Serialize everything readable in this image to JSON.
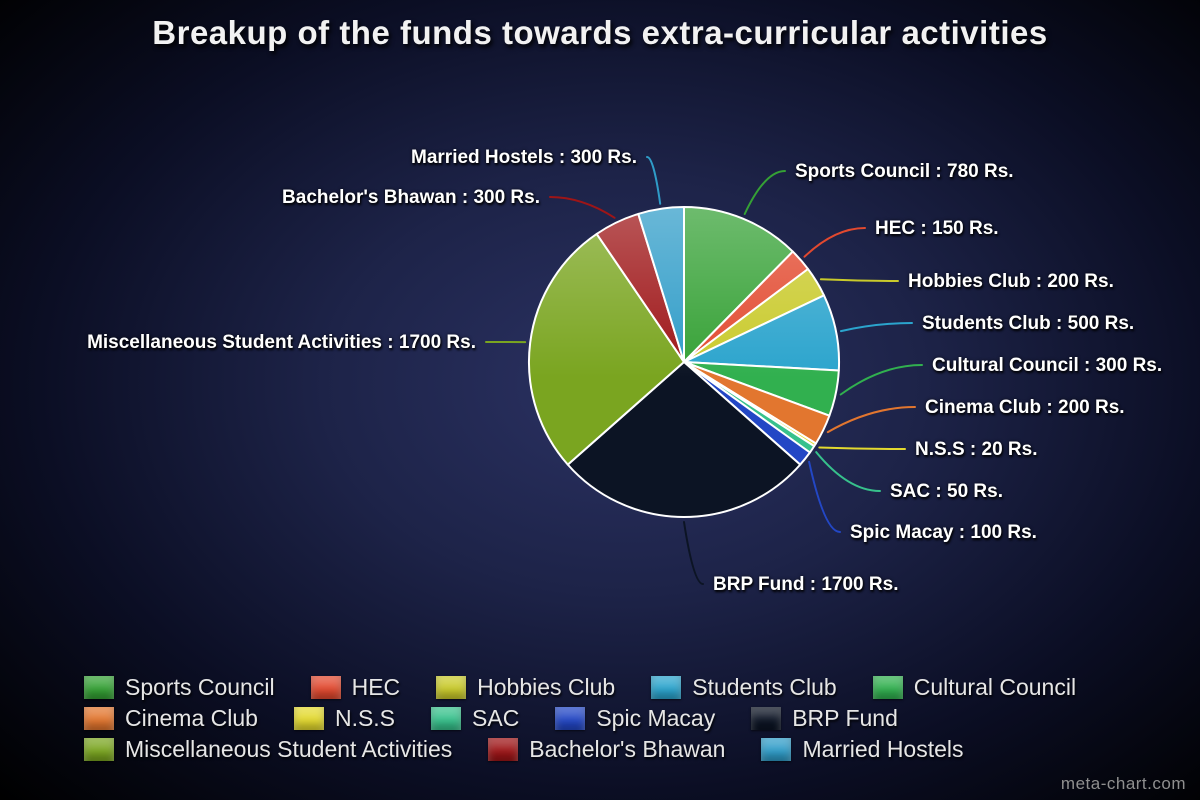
{
  "title": "Breakup of the funds towards extra-curricular activities",
  "watermark": "meta-chart.com",
  "chart_data": {
    "type": "pie",
    "title": "Breakup of the funds towards extra-curricular activities",
    "unit": "Rs.",
    "total": 6300,
    "start_angle_deg": 0,
    "direction": "clockwise",
    "legend_position": "bottom",
    "slices": [
      {
        "label": "Sports Council",
        "value": 780,
        "color": "#35a135",
        "annotation": "Sports Council : 780 Rs."
      },
      {
        "label": "HEC",
        "value": 150,
        "color": "#e2492f",
        "annotation": "HEC : 150 Rs."
      },
      {
        "label": "Hobbies Club",
        "value": 200,
        "color": "#c9ca2b",
        "annotation": "Hobbies Club : 200 Rs."
      },
      {
        "label": "Students Club",
        "value": 500,
        "color": "#2ba4cd",
        "annotation": "Students Club : 500 Rs."
      },
      {
        "label": "Cultural Council",
        "value": 300,
        "color": "#31b04f",
        "annotation": "Cultural Council : 300 Rs."
      },
      {
        "label": "Cinema Club",
        "value": 200,
        "color": "#e2762f",
        "annotation": "Cinema Club : 200 Rs."
      },
      {
        "label": "N.S.S",
        "value": 20,
        "color": "#e3d92f",
        "annotation": "N.S.S : 20 Rs."
      },
      {
        "label": "SAC",
        "value": 50,
        "color": "#37c18c",
        "annotation": "SAC : 50 Rs."
      },
      {
        "label": "Spic Macay",
        "value": 100,
        "color": "#2347c5",
        "annotation": "Spic Macay : 100 Rs."
      },
      {
        "label": "BRP Fund",
        "value": 1700,
        "color": "#0c1424",
        "annotation": "BRP Fund : 1700 Rs."
      },
      {
        "label": "Miscellaneous Student Activities",
        "value": 1700,
        "color": "#7aa520",
        "annotation": "Miscellaneous Student Activities : 1700 Rs."
      },
      {
        "label": "Bachelor's Bhawan",
        "value": 300,
        "color": "#9e1517",
        "annotation": "Bachelor's Bhawan : 300 Rs."
      },
      {
        "label": "Married Hostels",
        "value": 300,
        "color": "#2f9cc8",
        "annotation": "Married Hostels : 300 Rs."
      }
    ]
  }
}
